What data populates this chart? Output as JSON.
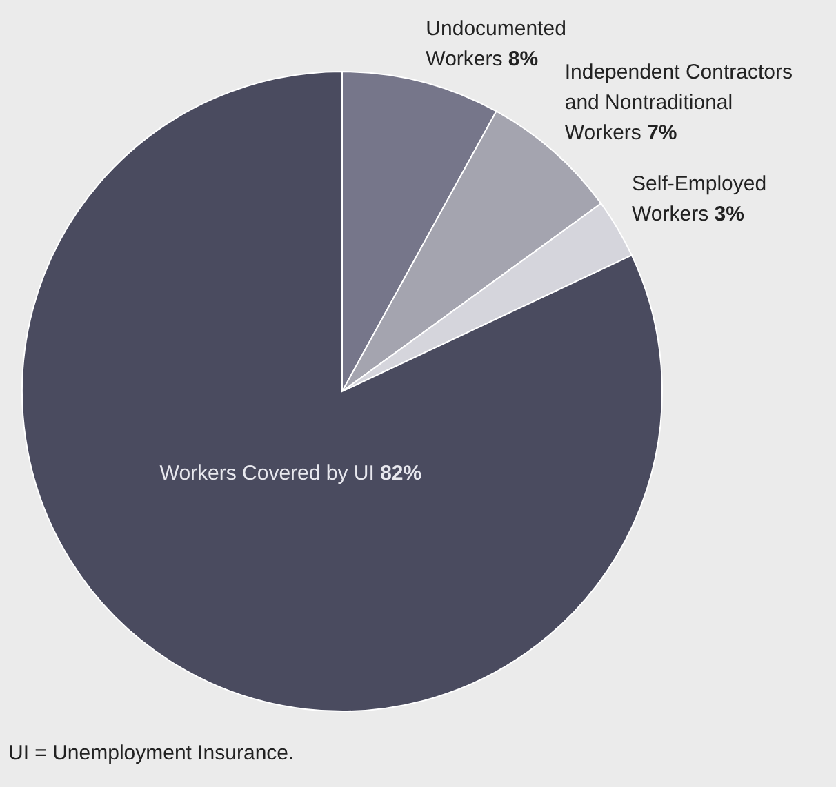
{
  "chart_data": {
    "type": "pie",
    "categories": [
      "Undocumented Workers",
      "Independent Contractors and Nontraditional Workers",
      "Self-Employed Workers",
      "Workers Covered by UI"
    ],
    "values": [
      8,
      7,
      3,
      82
    ],
    "value_labels": [
      "8%",
      "7%",
      "3%",
      "82%"
    ],
    "colors": [
      "#76768a",
      "#a4a4af",
      "#d5d5dc",
      "#4a4b5f"
    ],
    "annotations": [
      "UI = Unemployment Insurance."
    ]
  }
}
